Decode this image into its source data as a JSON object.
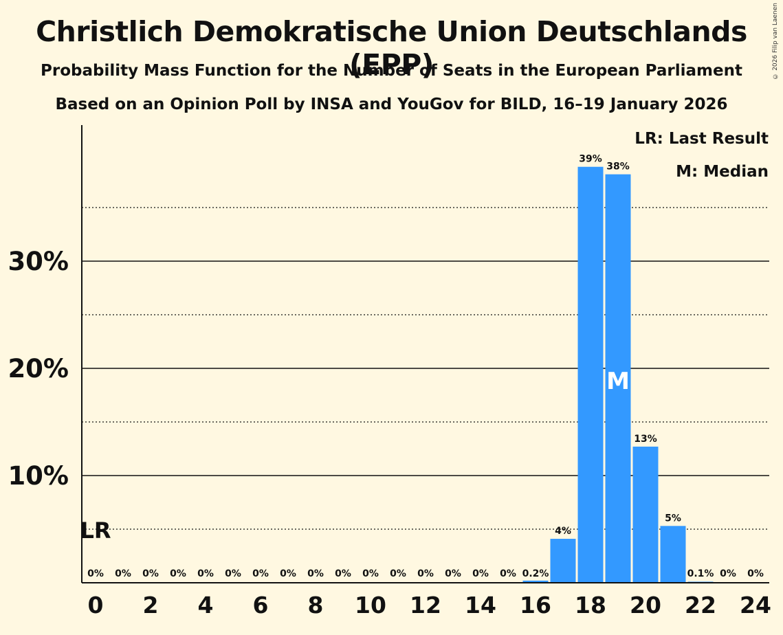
{
  "title": "Christlich Demokratische Union Deutschlands (EPP)",
  "subtitle1": "Probability Mass Function for the Number of Seats in the European Parliament",
  "subtitle2": "Based on an Opinion Poll by INSA and YouGov for BILD, 16–19 January 2026",
  "copyright": "© 2026 Filip van Laenen",
  "legend": {
    "last_result": "LR: Last Result",
    "median": "M: Median"
  },
  "colors": {
    "bar": "#3399ff",
    "background": "#fff8e1",
    "text": "#111111"
  },
  "chart_data": {
    "type": "bar",
    "categories": [
      0,
      1,
      2,
      3,
      4,
      5,
      6,
      7,
      8,
      9,
      10,
      11,
      12,
      13,
      14,
      15,
      16,
      17,
      18,
      19,
      20,
      21,
      22,
      23,
      24
    ],
    "values": [
      0,
      0,
      0,
      0,
      0,
      0,
      0,
      0,
      0,
      0,
      0,
      0,
      0,
      0,
      0,
      0,
      0.2,
      4.1,
      38.8,
      38.1,
      12.7,
      5.3,
      0.1,
      0,
      0
    ],
    "value_labels": [
      "0%",
      "0%",
      "0%",
      "0%",
      "0%",
      "0%",
      "0%",
      "0%",
      "0%",
      "0%",
      "0%",
      "0%",
      "0%",
      "0%",
      "0%",
      "0%",
      "0.2%",
      "4%",
      "39%",
      "38%",
      "13%",
      "5%",
      "0.1%",
      "0%",
      "0%"
    ],
    "x_tick_labels": [
      "0",
      "2",
      "4",
      "6",
      "8",
      "10",
      "12",
      "14",
      "16",
      "18",
      "20",
      "22",
      "24"
    ],
    "y_tick_labels": [
      "10%",
      "20%",
      "30%"
    ],
    "y_ticks": [
      10,
      20,
      30
    ],
    "y_minor_ticks": [
      5,
      15,
      25,
      35
    ],
    "ylim": [
      0,
      42.5
    ],
    "last_result": {
      "seat": 0,
      "label": "LR",
      "level": 5
    },
    "median": {
      "seat": 19,
      "label": "M"
    },
    "xlabel": "",
    "ylabel": ""
  }
}
